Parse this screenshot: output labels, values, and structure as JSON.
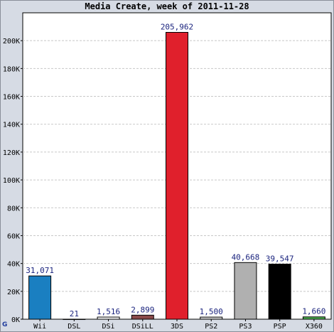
{
  "chart_data": {
    "type": "bar",
    "title": "Media Create, week of 2011-11-28",
    "categories": [
      "Wii",
      "DSL",
      "DSi",
      "DSiLL",
      "3DS",
      "PS2",
      "PS3",
      "PSP",
      "X360"
    ],
    "values": [
      31071,
      21,
      1516,
      2899,
      205962,
      1500,
      40668,
      39547,
      1660
    ],
    "data_labels": [
      "31,071",
      "21",
      "1,516",
      "2,899",
      "205,962",
      "1,500",
      "40,668",
      "39,547",
      "1,660"
    ],
    "colors": [
      "#1a7fc1",
      "#e0e0e0",
      "#ffffff",
      "#8b4a4a",
      "#e0202c",
      "#d8d8d8",
      "#b0b0b0",
      "#000000",
      "#4caf50"
    ],
    "ylim": [
      0,
      220000
    ],
    "yticks": [
      0,
      20000,
      40000,
      60000,
      80000,
      100000,
      120000,
      140000,
      160000,
      180000,
      200000
    ],
    "ytick_labels": [
      "0K",
      "20K",
      "40K",
      "60K",
      "80K",
      "100K",
      "120K",
      "140K",
      "160K",
      "180K",
      "200K"
    ],
    "xlabel": "",
    "ylabel": "",
    "grid": true
  },
  "logo_text": "G"
}
